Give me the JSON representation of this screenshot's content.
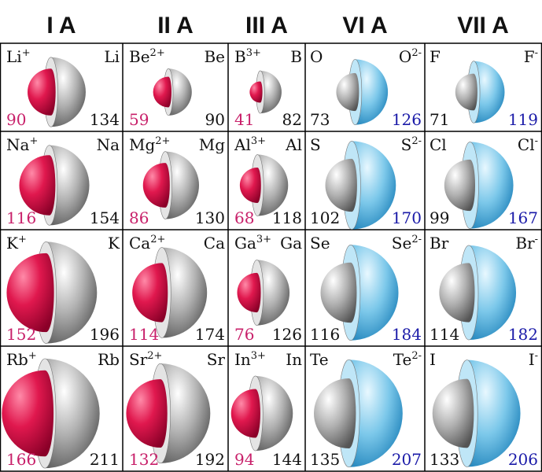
{
  "columns": [
    {
      "header": "I A",
      "ion_color": "#c8206a",
      "cells": [
        {
          "ion_symbol": "Li",
          "ion_charge": "+",
          "atom": "Li",
          "ion_radius": 90,
          "atom_radius": 134
        },
        {
          "ion_symbol": "Na",
          "ion_charge": "+",
          "atom": "Na",
          "ion_radius": 116,
          "atom_radius": 154
        },
        {
          "ion_symbol": "K",
          "ion_charge": "+",
          "atom": "K",
          "ion_radius": 152,
          "atom_radius": 196
        },
        {
          "ion_symbol": "Rb",
          "ion_charge": "+",
          "atom": "Rb",
          "ion_radius": 166,
          "atom_radius": 211
        }
      ]
    },
    {
      "header": "II A",
      "ion_color": "#c8206a",
      "cells": [
        {
          "ion_symbol": "Be",
          "ion_charge": "2+",
          "atom": "Be",
          "ion_radius": 59,
          "atom_radius": 90
        },
        {
          "ion_symbol": "Mg",
          "ion_charge": "2+",
          "atom": "Mg",
          "ion_radius": 86,
          "atom_radius": 130
        },
        {
          "ion_symbol": "Ca",
          "ion_charge": "2+",
          "atom": "Ca",
          "ion_radius": 114,
          "atom_radius": 174
        },
        {
          "ion_symbol": "Sr",
          "ion_charge": "2+",
          "atom": "Sr",
          "ion_radius": 132,
          "atom_radius": 192
        }
      ]
    },
    {
      "header": "III A",
      "ion_color": "#c8206a",
      "cells": [
        {
          "ion_symbol": "B",
          "ion_charge": "3+",
          "atom": "B",
          "ion_radius": 41,
          "atom_radius": 82
        },
        {
          "ion_symbol": "Al",
          "ion_charge": "3+",
          "atom": "Al",
          "ion_radius": 68,
          "atom_radius": 118
        },
        {
          "ion_symbol": "Ga",
          "ion_charge": "3+",
          "atom": "Ga",
          "ion_radius": 76,
          "atom_radius": 126
        },
        {
          "ion_symbol": "In",
          "ion_charge": "3+",
          "atom": "In",
          "ion_radius": 94,
          "atom_radius": 144
        }
      ]
    },
    {
      "header": "VI A",
      "ion_color": "#1a1aa8",
      "cells": [
        {
          "ion_symbol": "O",
          "ion_charge": "2-",
          "atom": "O",
          "ion_radius": 126,
          "atom_radius": 73
        },
        {
          "ion_symbol": "S",
          "ion_charge": "2-",
          "atom": "S",
          "ion_radius": 170,
          "atom_radius": 102
        },
        {
          "ion_symbol": "Se",
          "ion_charge": "2-",
          "atom": "Se",
          "ion_radius": 184,
          "atom_radius": 116
        },
        {
          "ion_symbol": "Te",
          "ion_charge": "2-",
          "atom": "Te",
          "ion_radius": 207,
          "atom_radius": 135
        }
      ]
    },
    {
      "header": "VII A",
      "ion_color": "#1a1aa8",
      "cells": [
        {
          "ion_symbol": "F",
          "ion_charge": "-",
          "atom": "F",
          "ion_radius": 119,
          "atom_radius": 71
        },
        {
          "ion_symbol": "Cl",
          "ion_charge": "-",
          "atom": "Cl",
          "ion_radius": 167,
          "atom_radius": 99
        },
        {
          "ion_symbol": "Br",
          "ion_charge": "-",
          "atom": "Br",
          "ion_radius": 182,
          "atom_radius": 114
        },
        {
          "ion_symbol": "I",
          "ion_charge": "-",
          "atom": "I",
          "ion_radius": 206,
          "atom_radius": 133
        }
      ]
    }
  ]
}
